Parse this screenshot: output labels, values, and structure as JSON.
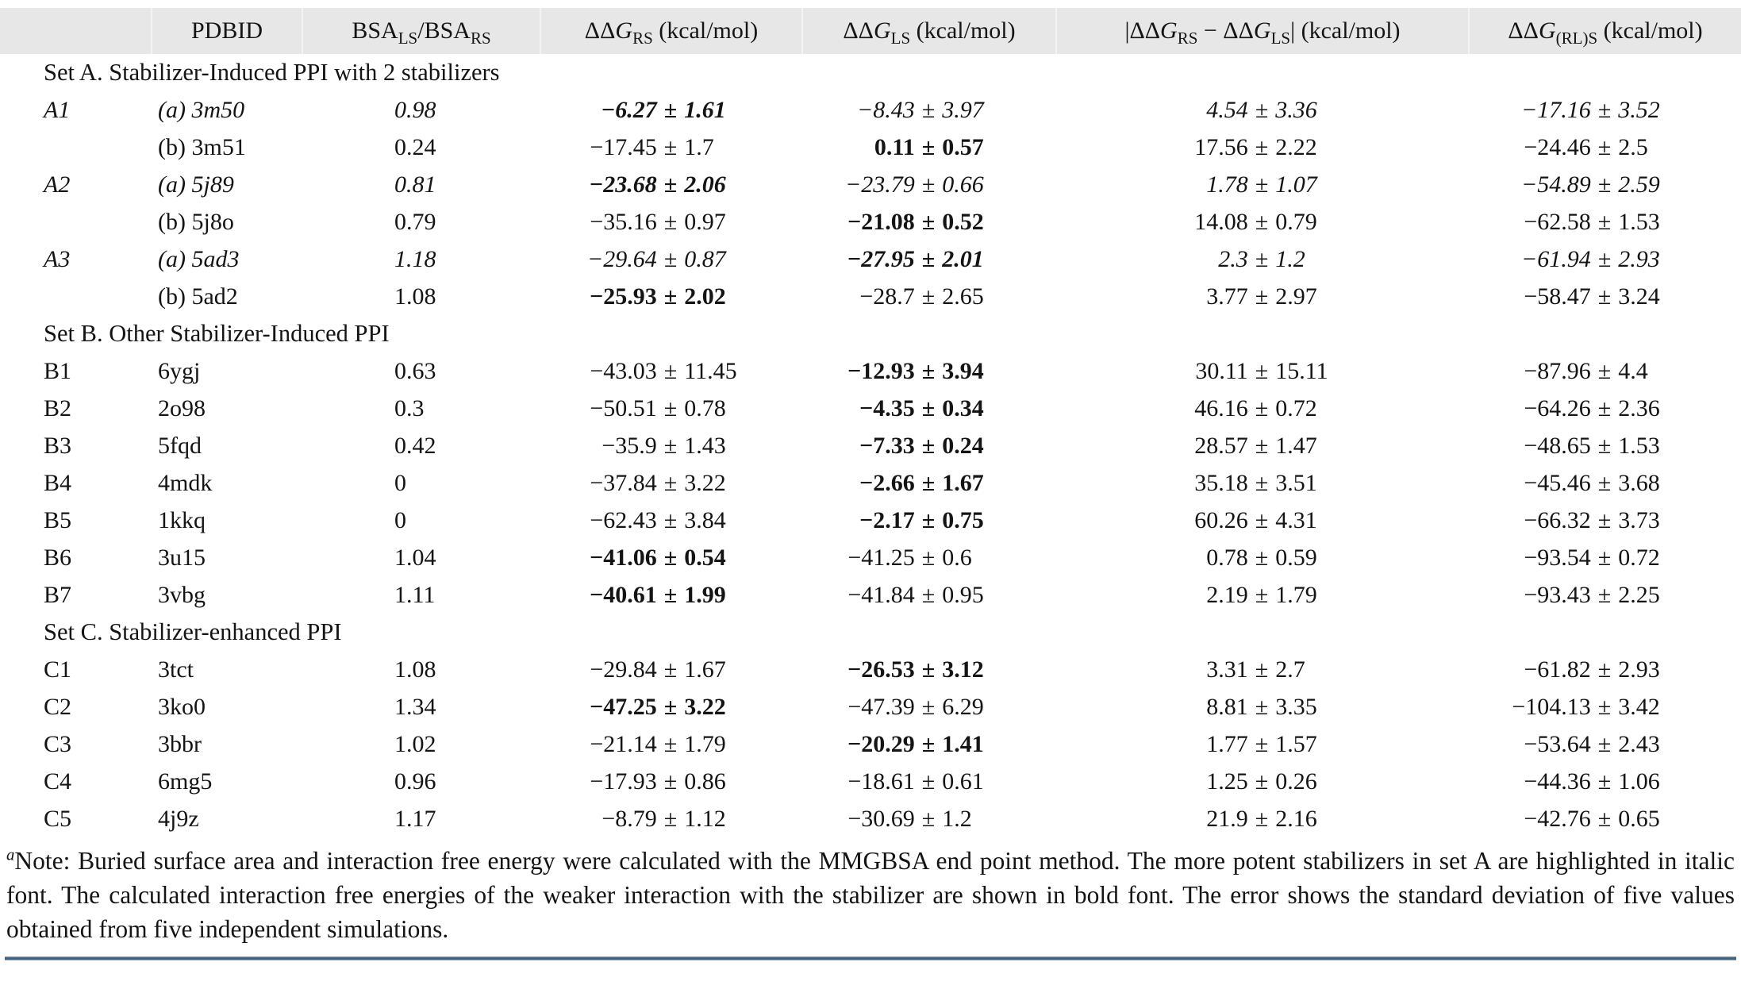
{
  "colors": {
    "header_bg": "#e7e7e7",
    "rule_color": "#41617e",
    "text": "#141414"
  },
  "table": {
    "columns": [
      {
        "key": "row",
        "segments": []
      },
      {
        "key": "pdbid",
        "segments": [
          {
            "t": "PDBID"
          }
        ]
      },
      {
        "key": "bsa-ratio",
        "segments": [
          {
            "t": "BSA"
          },
          {
            "sub": "LS"
          },
          {
            "t": "/BSA"
          },
          {
            "sub": "RS"
          }
        ]
      },
      {
        "key": "ddg-rs",
        "segments": [
          {
            "t": "ΔΔ"
          },
          {
            "i": "G"
          },
          {
            "sub": "RS"
          },
          {
            "t": " (kcal/mol)"
          }
        ]
      },
      {
        "key": "ddg-ls",
        "segments": [
          {
            "t": "ΔΔ"
          },
          {
            "i": "G"
          },
          {
            "sub": "LS"
          },
          {
            "t": " (kcal/mol)"
          }
        ]
      },
      {
        "key": "ddg-diff",
        "segments": [
          {
            "t": "|ΔΔ"
          },
          {
            "i": "G"
          },
          {
            "sub": "RS"
          },
          {
            "t": " − ΔΔ"
          },
          {
            "i": "G"
          },
          {
            "sub": "LS"
          },
          {
            "t": "| (kcal/mol)"
          }
        ]
      },
      {
        "key": "ddg-rls",
        "segments": [
          {
            "t": "ΔΔ"
          },
          {
            "i": "G"
          },
          {
            "sub": "(RL)S"
          },
          {
            "t": " (kcal/mol)"
          }
        ]
      }
    ],
    "rows": [
      {
        "section": "Set A. Stabilizer-Induced PPI with 2 stabilizers"
      },
      {
        "id": "A1",
        "pdb": "(a) 3m50",
        "bsa": "0.98",
        "italic": true,
        "rs": {
          "v": "−6.27 ± 1.61",
          "bold": true
        },
        "ls": {
          "v": "−8.43 ± 3.97"
        },
        "diff": {
          "v": "4.54 ± 3.36"
        },
        "rls": {
          "v": "−17.16 ± 3.52"
        }
      },
      {
        "id": "",
        "pdb": "(b) 3m51",
        "bsa": "0.24",
        "rs": {
          "v": "−17.45 ± 1.7"
        },
        "ls": {
          "v": "0.11 ± 0.57",
          "bold": true
        },
        "diff": {
          "v": "17.56 ± 2.22"
        },
        "rls": {
          "v": "−24.46 ± 2.5"
        }
      },
      {
        "id": "A2",
        "pdb": "(a) 5j89",
        "bsa": "0.81",
        "italic": true,
        "rs": {
          "v": "−23.68 ± 2.06",
          "bold": true
        },
        "ls": {
          "v": "−23.79 ± 0.66"
        },
        "diff": {
          "v": "1.78 ± 1.07"
        },
        "rls": {
          "v": "−54.89 ± 2.59"
        }
      },
      {
        "id": "",
        "pdb": "(b) 5j8o",
        "bsa": "0.79",
        "rs": {
          "v": "−35.16 ± 0.97"
        },
        "ls": {
          "v": "−21.08 ± 0.52",
          "bold": true
        },
        "diff": {
          "v": "14.08 ± 0.79"
        },
        "rls": {
          "v": "−62.58 ± 1.53"
        }
      },
      {
        "id": "A3",
        "pdb": "(a) 5ad3",
        "bsa": "1.18",
        "italic": true,
        "rs": {
          "v": "−29.64 ± 0.87"
        },
        "ls": {
          "v": "−27.95 ± 2.01",
          "bold": true
        },
        "diff": {
          "v": "2.3 ± 1.2"
        },
        "rls": {
          "v": "−61.94 ± 2.93"
        }
      },
      {
        "id": "",
        "pdb": "(b) 5ad2",
        "bsa": "1.08",
        "rs": {
          "v": "−25.93 ± 2.02",
          "bold": true
        },
        "ls": {
          "v": "−28.7 ± 2.65"
        },
        "diff": {
          "v": "3.77 ± 2.97"
        },
        "rls": {
          "v": "−58.47 ± 3.24"
        }
      },
      {
        "section": "Set B. Other Stabilizer-Induced PPI"
      },
      {
        "id": "B1",
        "pdb": "6ygj",
        "bsa": "0.63",
        "rs": {
          "v": "−43.03 ± 11.45"
        },
        "ls": {
          "v": "−12.93 ± 3.94",
          "bold": true
        },
        "diff": {
          "v": "30.11 ± 15.11"
        },
        "rls": {
          "v": "−87.96 ± 4.4"
        }
      },
      {
        "id": "B2",
        "pdb": "2o98",
        "bsa": "0.3",
        "rs": {
          "v": "−50.51 ± 0.78"
        },
        "ls": {
          "v": "−4.35 ± 0.34",
          "bold": true
        },
        "diff": {
          "v": "46.16 ± 0.72"
        },
        "rls": {
          "v": "−64.26 ± 2.36"
        }
      },
      {
        "id": "B3",
        "pdb": "5fqd",
        "bsa": "0.42",
        "rs": {
          "v": "−35.9 ± 1.43"
        },
        "ls": {
          "v": "−7.33 ± 0.24",
          "bold": true
        },
        "diff": {
          "v": "28.57 ± 1.47"
        },
        "rls": {
          "v": "−48.65 ± 1.53"
        }
      },
      {
        "id": "B4",
        "pdb": "4mdk",
        "bsa": "0",
        "rs": {
          "v": "−37.84 ± 3.22"
        },
        "ls": {
          "v": "−2.66 ± 1.67",
          "bold": true
        },
        "diff": {
          "v": "35.18 ± 3.51"
        },
        "rls": {
          "v": "−45.46 ± 3.68"
        }
      },
      {
        "id": "B5",
        "pdb": "1kkq",
        "bsa": "0",
        "rs": {
          "v": "−62.43 ± 3.84"
        },
        "ls": {
          "v": "−2.17 ± 0.75",
          "bold": true
        },
        "diff": {
          "v": "60.26 ± 4.31"
        },
        "rls": {
          "v": "−66.32 ± 3.73"
        }
      },
      {
        "id": "B6",
        "pdb": "3u15",
        "bsa": "1.04",
        "rs": {
          "v": "−41.06 ± 0.54",
          "bold": true
        },
        "ls": {
          "v": "−41.25 ± 0.6"
        },
        "diff": {
          "v": "0.78 ± 0.59"
        },
        "rls": {
          "v": "−93.54 ± 0.72"
        }
      },
      {
        "id": "B7",
        "pdb": "3vbg",
        "bsa": "1.11",
        "rs": {
          "v": "−40.61 ± 1.99",
          "bold": true
        },
        "ls": {
          "v": "−41.84 ± 0.95"
        },
        "diff": {
          "v": "2.19 ± 1.79"
        },
        "rls": {
          "v": "−93.43 ± 2.25"
        }
      },
      {
        "section": "Set C. Stabilizer-enhanced PPI"
      },
      {
        "id": "C1",
        "pdb": "3tct",
        "bsa": "1.08",
        "rs": {
          "v": "−29.84 ± 1.67"
        },
        "ls": {
          "v": "−26.53 ± 3.12",
          "bold": true
        },
        "diff": {
          "v": "3.31 ± 2.7"
        },
        "rls": {
          "v": "−61.82 ± 2.93"
        }
      },
      {
        "id": "C2",
        "pdb": "3ko0",
        "bsa": "1.34",
        "rs": {
          "v": "−47.25 ± 3.22",
          "bold": true
        },
        "ls": {
          "v": "−47.39 ± 6.29"
        },
        "diff": {
          "v": "8.81 ± 3.35"
        },
        "rls": {
          "v": "−104.13 ± 3.42"
        }
      },
      {
        "id": "C3",
        "pdb": "3bbr",
        "bsa": "1.02",
        "rs": {
          "v": "−21.14 ± 1.79"
        },
        "ls": {
          "v": "−20.29 ± 1.41",
          "bold": true
        },
        "diff": {
          "v": "1.77 ± 1.57"
        },
        "rls": {
          "v": "−53.64 ± 2.43"
        }
      },
      {
        "id": "C4",
        "pdb": "6mg5",
        "bsa": "0.96",
        "rs": {
          "v": "−17.93 ± 0.86"
        },
        "ls": {
          "v": "−18.61 ± 0.61"
        },
        "diff": {
          "v": "1.25 ± 0.26"
        },
        "rls": {
          "v": "−44.36 ± 1.06"
        }
      },
      {
        "id": "C5",
        "pdb": "4j9z",
        "bsa": "1.17",
        "rs": {
          "v": "−8.79 ± 1.12"
        },
        "ls": {
          "v": "−30.69 ± 1.2"
        },
        "diff": {
          "v": "21.9 ± 2.16"
        },
        "rls": {
          "v": "−42.76 ± 0.65"
        }
      }
    ]
  },
  "footnote": {
    "marker": "a",
    "text": "Note: Buried surface area and interaction free energy were calculated with the MMGBSA end point method. The more potent stabilizers in set A are highlighted in italic font. The calculated interaction free energies of the weaker interaction with the stabilizer are shown in bold font. The error shows the standard deviation of five values obtained from five independent simulations."
  }
}
